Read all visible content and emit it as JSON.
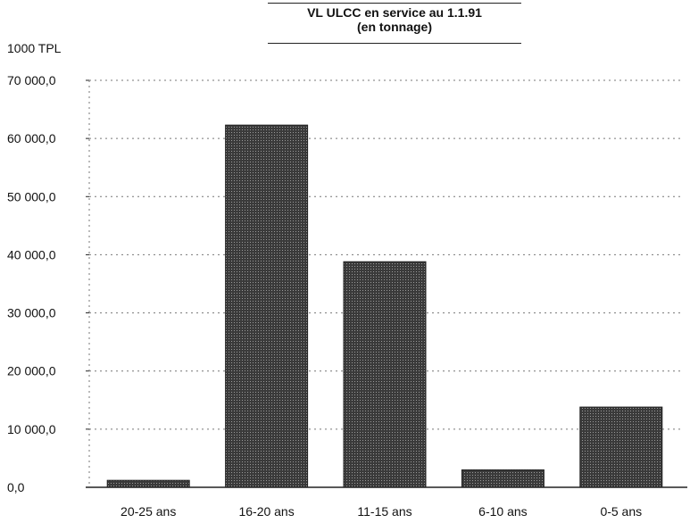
{
  "chart_data": {
    "type": "bar",
    "title": "VL ULCC en service au 1.1.91",
    "subtitle": "(en tonnage)",
    "ylabel": "1000 TPL",
    "xlabel": "",
    "categories": [
      "20-25 ans",
      "16-20 ans",
      "11-15 ans",
      "6-10 ans",
      "0-5 ans"
    ],
    "values": [
      1200,
      62300,
      38800,
      3000,
      13800
    ],
    "ylim": [
      0,
      70000
    ],
    "yticks": [
      0,
      10000,
      20000,
      30000,
      40000,
      50000,
      60000,
      70000
    ],
    "ytick_labels": [
      "0,0",
      "10 000,0",
      "20 000,0",
      "30 000,0",
      "40 000,0",
      "50 000,0",
      "60 000,0",
      "70 000,0"
    ],
    "grid": true,
    "bar_color": "#555555"
  }
}
